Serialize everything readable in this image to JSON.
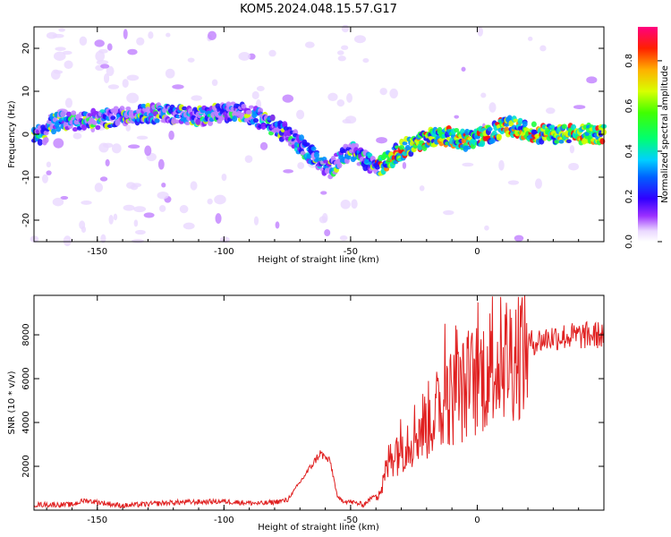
{
  "title": "KOM5.2024.048.15.57.G17",
  "colors": {
    "snr_line": "#e02020",
    "frame": "#000000"
  },
  "chart_data": [
    {
      "type": "heatmap",
      "title": "KOM5.2024.048.15.57.G17",
      "xlabel": "Height of straight line (km)",
      "ylabel": "Frequency (Hz)",
      "xlim": [
        -175,
        50
      ],
      "ylim": [
        -25,
        25
      ],
      "xticks": [
        -150,
        -100,
        -50,
        0
      ],
      "yticks": [
        -20,
        -10,
        0,
        10,
        20
      ],
      "colorbar": {
        "label": "Normalized spectral amplitude",
        "range": [
          0,
          0.95
        ],
        "ticks": [
          0.0,
          0.2,
          0.4,
          0.6,
          0.8
        ],
        "colormap": "rainbow"
      },
      "ridge": {
        "description_points": [
          {
            "x": -170,
            "y": 2.5
          },
          {
            "x": -150,
            "y": 3.5
          },
          {
            "x": -130,
            "y": 5
          },
          {
            "x": -110,
            "y": 4
          },
          {
            "x": -95,
            "y": 5.5
          },
          {
            "x": -85,
            "y": 3.5
          },
          {
            "x": -75,
            "y": 0
          },
          {
            "x": -65,
            "y": -5
          },
          {
            "x": -58,
            "y": -8
          },
          {
            "x": -50,
            "y": -3.5
          },
          {
            "x": -40,
            "y": -8
          },
          {
            "x": -28,
            "y": -3
          },
          {
            "x": -15,
            "y": 0
          },
          {
            "x": -5,
            "y": -1.5
          },
          {
            "x": 5,
            "y": 0
          },
          {
            "x": 12,
            "y": 2
          },
          {
            "x": 25,
            "y": 0
          },
          {
            "x": 50,
            "y": 0
          }
        ]
      }
    },
    {
      "type": "line",
      "xlabel": "Height of straight line (km)",
      "ylabel": "SNR (10 * v/v)",
      "xlim": [
        -175,
        50
      ],
      "ylim": [
        0,
        9800
      ],
      "xticks": [
        -150,
        -100,
        -50,
        0
      ],
      "yticks": [
        2000,
        4000,
        6000,
        8000
      ],
      "series": [
        {
          "values_envelope": [
            {
              "x": -175,
              "y": 250
            },
            {
              "x": -160,
              "y": 250
            },
            {
              "x": -155,
              "y": 450
            },
            {
              "x": -140,
              "y": 200
            },
            {
              "x": -120,
              "y": 350
            },
            {
              "x": -100,
              "y": 400
            },
            {
              "x": -85,
              "y": 300
            },
            {
              "x": -75,
              "y": 450
            },
            {
              "x": -68,
              "y": 1600
            },
            {
              "x": -62,
              "y": 2600
            },
            {
              "x": -58,
              "y": 2200
            },
            {
              "x": -55,
              "y": 500
            },
            {
              "x": -45,
              "y": 250
            },
            {
              "x": -38,
              "y": 900
            },
            {
              "x": -34,
              "y": 2600
            },
            {
              "x": -28,
              "y": 3200
            },
            {
              "x": -20,
              "y": 4000
            },
            {
              "x": -12,
              "y": 5000
            },
            {
              "x": -5,
              "y": 5500
            },
            {
              "x": 0,
              "y": 6000
            },
            {
              "x": 5,
              "y": 6500
            },
            {
              "x": 12,
              "y": 7000
            },
            {
              "x": 20,
              "y": 7600
            },
            {
              "x": 30,
              "y": 7900
            },
            {
              "x": 50,
              "y": 8000
            }
          ]
        }
      ]
    }
  ]
}
